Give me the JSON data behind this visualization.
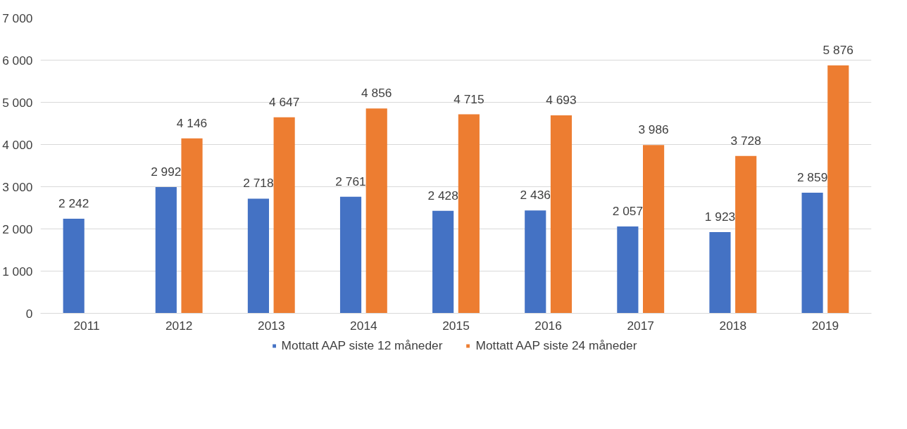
{
  "chart_data": {
    "type": "bar",
    "categories": [
      "2011",
      "2012",
      "2013",
      "2014",
      "2015",
      "2016",
      "2017",
      "2018",
      "2019"
    ],
    "series": [
      {
        "name": "Mottatt AAP siste 12 måneder",
        "color": "#4472c4",
        "values": [
          2242,
          2992,
          2718,
          2761,
          2428,
          2436,
          2057,
          1923,
          2859
        ],
        "value_labels": [
          "2 242",
          "2 992",
          "2 718",
          "2 761",
          "2 428",
          "2 436",
          "2 057",
          "1 923",
          "2 859"
        ]
      },
      {
        "name": "Mottatt AAP siste 24 måneder",
        "color": "#ed7d31",
        "values": [
          null,
          4146,
          4647,
          4856,
          4715,
          4693,
          3986,
          3728,
          5876
        ],
        "value_labels": [
          null,
          "4 146",
          "4 647",
          "4 856",
          "4 715",
          "4 693",
          "3 986",
          "3 728",
          "5 876"
        ]
      }
    ],
    "ylim": [
      0,
      7000
    ],
    "yticks": [
      {
        "value": 0,
        "label": "0"
      },
      {
        "value": 1000,
        "label": "1 000"
      },
      {
        "value": 2000,
        "label": "2 000"
      },
      {
        "value": 3000,
        "label": "3 000"
      },
      {
        "value": 4000,
        "label": "4 000"
      },
      {
        "value": 5000,
        "label": "5 000"
      },
      {
        "value": 6000,
        "label": "6 000"
      },
      {
        "value": 7000,
        "label": "7 000"
      }
    ],
    "grid": "y",
    "legend": "bottom"
  }
}
